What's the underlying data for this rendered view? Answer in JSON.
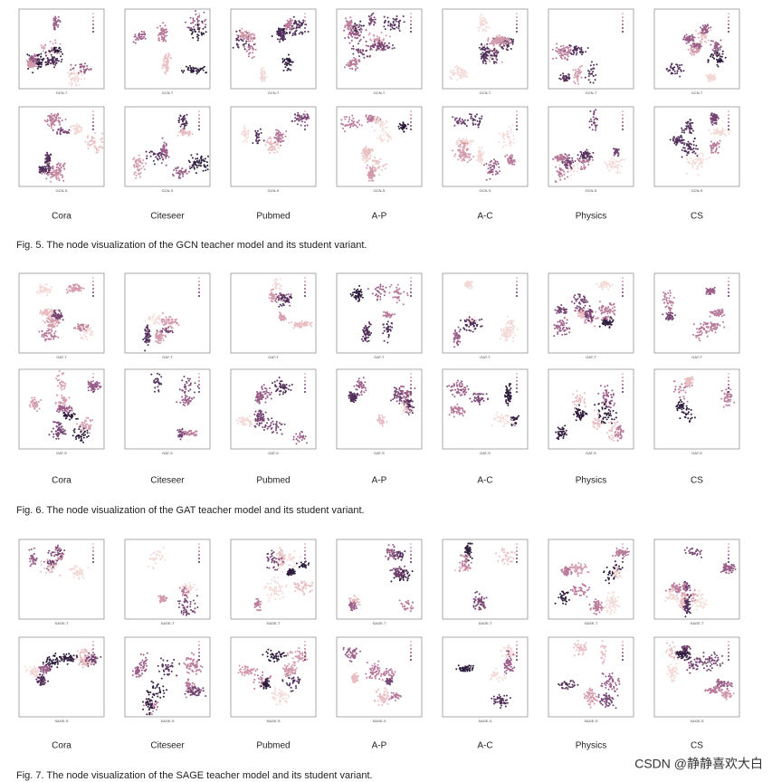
{
  "figures": [
    {
      "caption": "Fig. 5. The node visualization of the GCN teacher model and its student variant.",
      "axis_labels": [
        "GCN-T",
        "GCN-S"
      ],
      "datasets": [
        "Cora",
        "Citeseer",
        "Pubmed",
        "A-P",
        "A-C",
        "Physics",
        "CS"
      ]
    },
    {
      "caption": "Fig. 6. The node visualization of the GAT teacher model and its student variant.",
      "axis_labels": [
        "GAT-T",
        "GAT-S"
      ],
      "datasets": [
        "Cora",
        "Citeseer",
        "Pubmed",
        "A-P",
        "A-C",
        "Physics",
        "CS"
      ]
    },
    {
      "caption": "Fig. 7. The node visualization of the SAGE teacher model and its student variant.",
      "axis_labels": [
        "SAGE-T",
        "SAGE-S"
      ],
      "datasets": [
        "Cora",
        "Citeseer",
        "Pubmed",
        "A-P",
        "A-C",
        "Physics",
        "CS"
      ]
    }
  ],
  "watermark": "CSDN @静静喜欢大白"
}
